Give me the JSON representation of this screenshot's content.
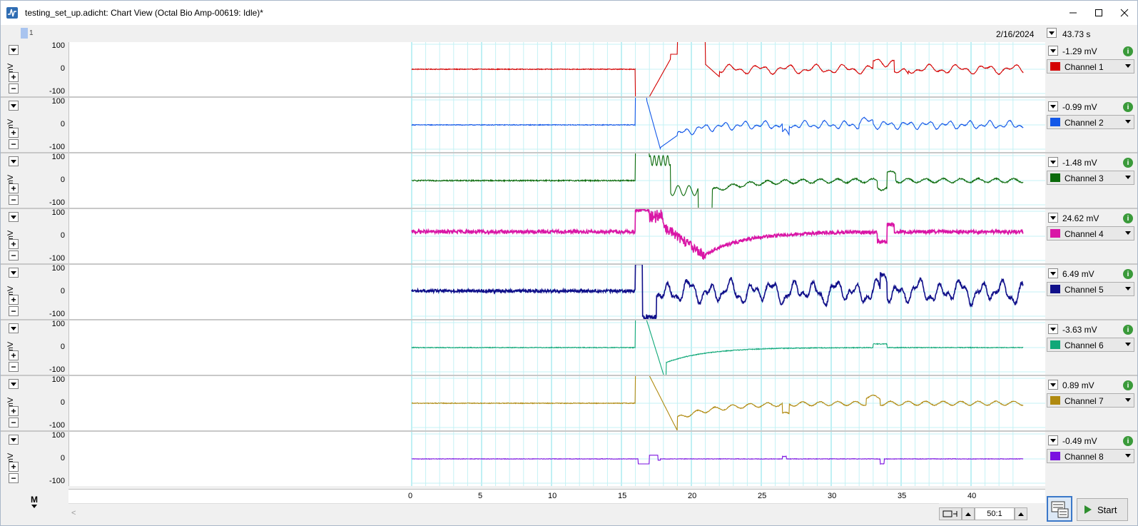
{
  "window": {
    "title": "testing_set_up.adicht: Chart View (Octal Bio Amp-00619: Idle)*"
  },
  "toolbar": {
    "marker_label": "1",
    "date": "2/16/2024",
    "time": "43.73 s"
  },
  "axes": {
    "y_ticks": [
      "100",
      "0",
      "-100"
    ],
    "unit": "mV",
    "x_ticks": [
      "0",
      "5",
      "10",
      "15",
      "20",
      "25",
      "30",
      "35",
      "40"
    ],
    "x_range": [
      0,
      43.73
    ],
    "y_range": [
      -100,
      100
    ]
  },
  "channels": [
    {
      "name": "Channel 1",
      "value": "-1.29 mV",
      "color": "#d40000"
    },
    {
      "name": "Channel 2",
      "value": "-0.99 mV",
      "color": "#1358e8"
    },
    {
      "name": "Channel 3",
      "value": "-1.48 mV",
      "color": "#0a6a0a"
    },
    {
      "name": "Channel 4",
      "value": "24.62 mV",
      "color": "#d916a6"
    },
    {
      "name": "Channel 5",
      "value": "6.49 mV",
      "color": "#10108a"
    },
    {
      "name": "Channel 6",
      "value": "-3.63 mV",
      "color": "#10a878"
    },
    {
      "name": "Channel 7",
      "value": "0.89 mV",
      "color": "#b08a10"
    },
    {
      "name": "Channel 8",
      "value": "-0.49 mV",
      "color": "#7a10e0"
    }
  ],
  "bottom": {
    "m_label": "M",
    "zoom": "50:1",
    "start_label": "Start"
  }
}
